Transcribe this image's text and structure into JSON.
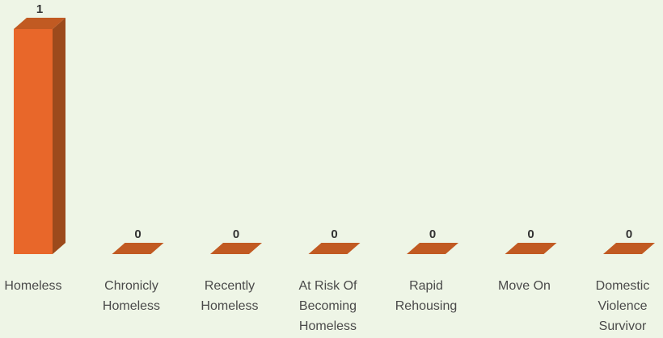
{
  "chart_data": {
    "type": "bar",
    "style": "3d-column",
    "categories": [
      [
        "Homeless"
      ],
      [
        "Chronicly",
        "Homeless"
      ],
      [
        "Recently",
        "Homeless"
      ],
      [
        "At Risk Of",
        "Becoming",
        "Homeless"
      ],
      [
        "Rapid",
        "Rehousing"
      ],
      [
        "Move On"
      ],
      [
        "Domestic",
        "Violence",
        "Survivor"
      ]
    ],
    "values": [
      1,
      0,
      0,
      0,
      0,
      0,
      0
    ],
    "ylim": [
      0,
      1
    ],
    "grid": false,
    "legend": "none",
    "colors": {
      "front": "#e8672a",
      "side": "#9c4a1c",
      "top": "#c15a22",
      "background": "#eef5e6"
    }
  }
}
